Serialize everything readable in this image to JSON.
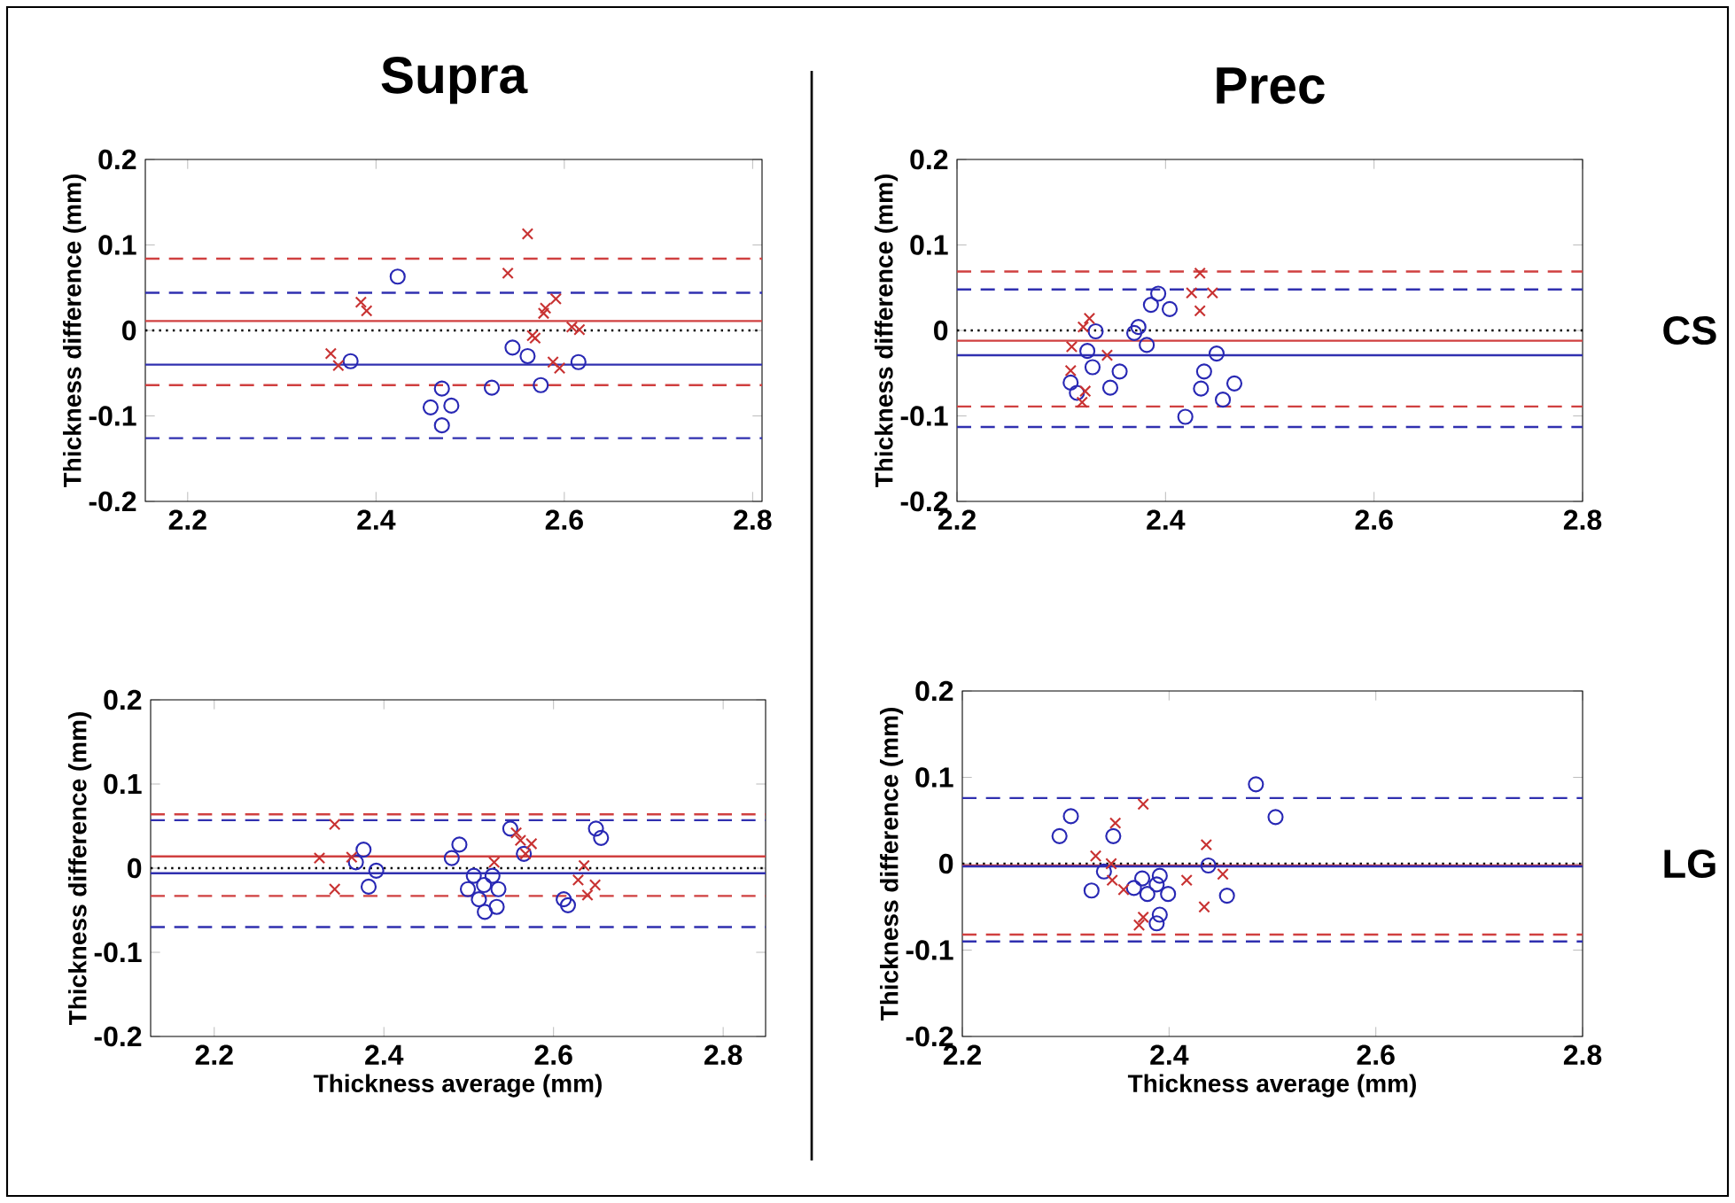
{
  "chart_data": [
    {
      "type": "scatter",
      "title": "Supra",
      "ylabel": "Thickness difference (mm)",
      "xlim": [
        2.155,
        2.81
      ],
      "ylim": [
        -0.2,
        0.2
      ],
      "xticks": [
        2.2,
        2.4,
        2.6,
        2.8
      ],
      "yticks": [
        -0.2,
        -0.1,
        0,
        0.1,
        0.2
      ],
      "series": [
        {
          "color": "#2828b4",
          "marker": "circle",
          "x": [
            2.423,
            2.373,
            2.47,
            2.458,
            2.48,
            2.47,
            2.523,
            2.545,
            2.561,
            2.575,
            2.615
          ],
          "values": [
            0.063,
            -0.036,
            -0.068,
            -0.09,
            -0.088,
            -0.111,
            -0.067,
            -0.02,
            -0.03,
            -0.064,
            -0.037
          ]
        },
        {
          "color": "#c83232",
          "marker": "cross",
          "x": [
            2.561,
            2.54,
            2.384,
            2.39,
            2.352,
            2.36,
            2.578,
            2.58,
            2.591,
            2.566,
            2.569,
            2.588,
            2.595,
            2.608,
            2.616
          ],
          "values": [
            0.113,
            0.067,
            0.033,
            0.023,
            -0.027,
            -0.041,
            0.02,
            0.026,
            0.037,
            -0.006,
            -0.009,
            -0.037,
            -0.044,
            0.004,
            0.001
          ]
        }
      ],
      "ref_lines": [
        {
          "axis": "y",
          "value": 0.084,
          "color": "#d04040",
          "line_style": "dashed"
        },
        {
          "axis": "y",
          "value": 0.044,
          "color": "#3030b0",
          "line_style": "dashed"
        },
        {
          "axis": "y",
          "value": 0.011,
          "color": "#d04040",
          "line_style": "solid"
        },
        {
          "axis": "y",
          "value": 0,
          "color": "#000000",
          "line_style": "dotted"
        },
        {
          "axis": "y",
          "value": -0.04,
          "color": "#3030b0",
          "line_style": "solid"
        },
        {
          "axis": "y",
          "value": -0.064,
          "color": "#d04040",
          "line_style": "dashed"
        },
        {
          "axis": "y",
          "value": -0.126,
          "color": "#3030b0",
          "line_style": "dashed"
        }
      ]
    },
    {
      "type": "scatter",
      "title": "Prec",
      "ylabel": "Thickness difference (mm)",
      "xlim": [
        2.2,
        2.8
      ],
      "ylim": [
        -0.2,
        0.2
      ],
      "xticks": [
        2.2,
        2.4,
        2.6,
        2.8
      ],
      "yticks": [
        -0.2,
        -0.1,
        0,
        0.1,
        0.2
      ],
      "annotations": [
        "CS"
      ],
      "series": [
        {
          "color": "#2828b4",
          "marker": "circle",
          "x": [
            2.393,
            2.386,
            2.404,
            2.374,
            2.37,
            2.382,
            2.333,
            2.325,
            2.33,
            2.356,
            2.347,
            2.309,
            2.315,
            2.449,
            2.437,
            2.434,
            2.466,
            2.455,
            2.419
          ],
          "values": [
            0.043,
            0.03,
            0.025,
            0.004,
            -0.003,
            -0.017,
            -0.001,
            -0.024,
            -0.043,
            -0.048,
            -0.067,
            -0.061,
            -0.073,
            -0.027,
            -0.048,
            -0.068,
            -0.062,
            -0.081,
            -0.101
          ]
        },
        {
          "color": "#c83232",
          "marker": "cross",
          "x": [
            2.433,
            2.425,
            2.445,
            2.433,
            2.327,
            2.321,
            2.31,
            2.344,
            2.309,
            2.323,
            2.32
          ],
          "values": [
            0.067,
            0.044,
            0.044,
            0.023,
            0.014,
            0.004,
            -0.019,
            -0.029,
            -0.047,
            -0.071,
            -0.084
          ]
        }
      ],
      "ref_lines": [
        {
          "axis": "y",
          "value": 0.069,
          "color": "#d04040",
          "line_style": "dashed"
        },
        {
          "axis": "y",
          "value": 0.048,
          "color": "#3030b0",
          "line_style": "dashed"
        },
        {
          "axis": "y",
          "value": 0,
          "color": "#000000",
          "line_style": "dotted"
        },
        {
          "axis": "y",
          "value": -0.012,
          "color": "#d04040",
          "line_style": "solid"
        },
        {
          "axis": "y",
          "value": -0.029,
          "color": "#3030b0",
          "line_style": "solid"
        },
        {
          "axis": "y",
          "value": -0.089,
          "color": "#d04040",
          "line_style": "dashed"
        },
        {
          "axis": "y",
          "value": -0.113,
          "color": "#3030b0",
          "line_style": "dashed"
        }
      ]
    },
    {
      "type": "scatter",
      "xlabel": "Thickness average (mm)",
      "ylabel": "Thickness difference (mm)",
      "xlim": [
        2.125,
        2.85
      ],
      "ylim": [
        -0.2,
        0.2
      ],
      "xticks": [
        2.2,
        2.4,
        2.6,
        2.8
      ],
      "yticks": [
        -0.2,
        -0.1,
        0,
        0.1,
        0.2
      ],
      "series": [
        {
          "color": "#2828b4",
          "marker": "circle",
          "x": [
            2.367,
            2.376,
            2.391,
            2.382,
            2.48,
            2.489,
            2.506,
            2.499,
            2.518,
            2.512,
            2.519,
            2.528,
            2.535,
            2.533,
            2.549,
            2.565,
            2.612,
            2.617,
            2.65,
            2.656
          ],
          "values": [
            0.007,
            0.022,
            -0.003,
            -0.022,
            0.012,
            0.028,
            -0.009,
            -0.025,
            -0.02,
            -0.037,
            -0.052,
            -0.009,
            -0.025,
            -0.046,
            0.047,
            0.017,
            -0.037,
            -0.044,
            0.047,
            0.036
          ]
        },
        {
          "color": "#c83232",
          "marker": "cross",
          "x": [
            2.342,
            2.324,
            2.342,
            2.362,
            2.53,
            2.556,
            2.561,
            2.574,
            2.567,
            2.636,
            2.629,
            2.649,
            2.64
          ],
          "values": [
            0.052,
            0.012,
            -0.025,
            0.013,
            0.007,
            0.042,
            0.033,
            0.029,
            0.017,
            0.003,
            -0.014,
            -0.02,
            -0.032
          ]
        }
      ],
      "ref_lines": [
        {
          "axis": "y",
          "value": 0.064,
          "color": "#d04040",
          "line_style": "dashed"
        },
        {
          "axis": "y",
          "value": 0.057,
          "color": "#3030b0",
          "line_style": "dashed"
        },
        {
          "axis": "y",
          "value": 0.014,
          "color": "#d04040",
          "line_style": "solid"
        },
        {
          "axis": "y",
          "value": 0,
          "color": "#000000",
          "line_style": "dotted"
        },
        {
          "axis": "y",
          "value": -0.006,
          "color": "#3030b0",
          "line_style": "solid"
        },
        {
          "axis": "y",
          "value": -0.033,
          "color": "#d04040",
          "line_style": "dashed"
        },
        {
          "axis": "y",
          "value": -0.07,
          "color": "#3030b0",
          "line_style": "dashed"
        }
      ]
    },
    {
      "type": "scatter",
      "xlabel": "Thickness average (mm)",
      "ylabel": "Thickness difference (mm)",
      "xlim": [
        2.2,
        2.8
      ],
      "ylim": [
        -0.2,
        0.2
      ],
      "xticks": [
        2.2,
        2.4,
        2.6,
        2.8
      ],
      "yticks": [
        -0.2,
        -0.1,
        0,
        0.1,
        0.2
      ],
      "annotations": [
        "LG"
      ],
      "series": [
        {
          "color": "#2828b4",
          "marker": "circle",
          "x": [
            2.294,
            2.305,
            2.346,
            2.337,
            2.325,
            2.366,
            2.374,
            2.379,
            2.391,
            2.388,
            2.399,
            2.391,
            2.388,
            2.438,
            2.456,
            2.484,
            2.503
          ],
          "values": [
            0.032,
            0.055,
            0.032,
            -0.009,
            -0.031,
            -0.028,
            -0.017,
            -0.035,
            -0.014,
            -0.024,
            -0.035,
            -0.059,
            -0.069,
            -0.002,
            -0.037,
            0.092,
            0.054
          ]
        },
        {
          "color": "#c83232",
          "marker": "cross",
          "x": [
            2.375,
            2.348,
            2.329,
            2.344,
            2.345,
            2.356,
            2.436,
            2.417,
            2.434,
            2.452,
            2.375,
            2.371
          ],
          "values": [
            0.069,
            0.047,
            0.009,
            0.0,
            -0.019,
            -0.03,
            0.022,
            -0.019,
            -0.05,
            -0.012,
            -0.062,
            -0.071
          ]
        }
      ],
      "ref_lines": [
        {
          "axis": "y",
          "value": 0.076,
          "color": "#3030b0",
          "line_style": "dashed"
        },
        {
          "axis": "y",
          "value": 0,
          "color": "#000000",
          "line_style": "dotted"
        },
        {
          "axis": "y",
          "value": -0.002,
          "color": "#d04040",
          "line_style": "solid"
        },
        {
          "axis": "y",
          "value": -0.003,
          "color": "#3030b0",
          "line_style": "solid"
        },
        {
          "axis": "y",
          "value": -0.082,
          "color": "#d04040",
          "line_style": "dashed"
        },
        {
          "axis": "y",
          "value": -0.09,
          "color": "#3030b0",
          "line_style": "dashed"
        }
      ]
    }
  ]
}
